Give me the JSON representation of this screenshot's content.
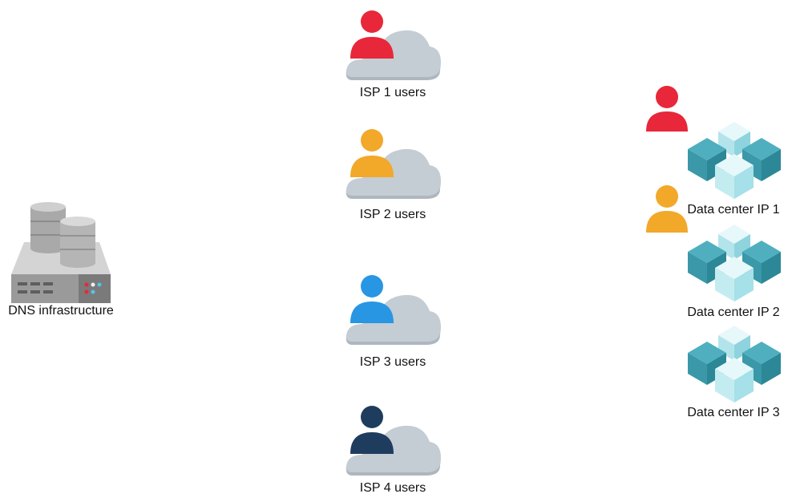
{
  "dns": {
    "label": "DNS infrastructure"
  },
  "isps": [
    {
      "label": "ISP 1 users",
      "color": "#E8273A"
    },
    {
      "label": "ISP 2 users",
      "color": "#F2A829"
    },
    {
      "label": "ISP 3 users",
      "color": "#2896E3"
    },
    {
      "label": "ISP 4 users",
      "color": "#1E3D5E"
    }
  ],
  "datacenters": [
    {
      "label": "Data center IP 1"
    },
    {
      "label": "Data center IP 2"
    },
    {
      "label": "Data center IP 3"
    }
  ],
  "colors": {
    "cloud": "#C4CCD4",
    "cloud_shadow": "#AEB7C0",
    "cube_light": "#D2F2F6",
    "cube_mid": "#4FAFBF",
    "cube_dark": "#2C8797",
    "server_gray": "#BFBFBF"
  }
}
